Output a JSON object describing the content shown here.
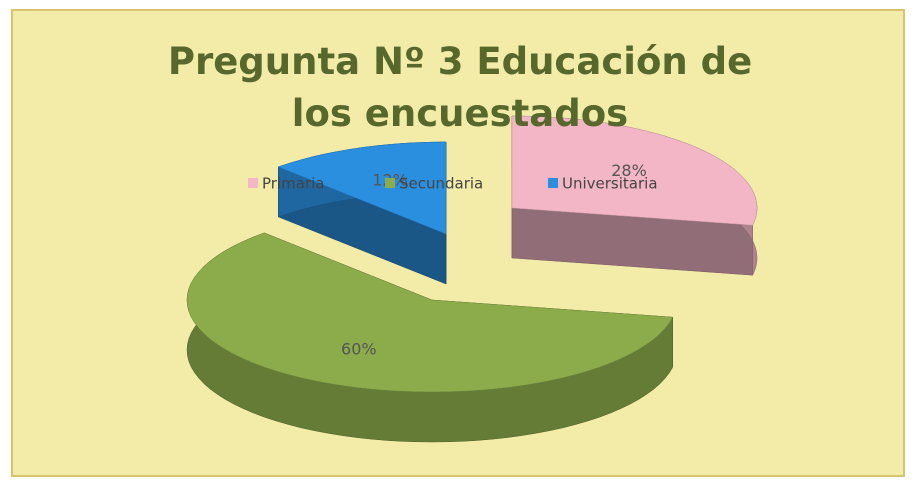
{
  "chart_data": {
    "type": "pie",
    "title": "Pregunta Nº 3 Educación de los encuestados",
    "categories": [
      "Primaria",
      "Secundaria",
      "Universitaria"
    ],
    "values": [
      28,
      60,
      12
    ],
    "value_labels": [
      "28%",
      "60%",
      "12%"
    ],
    "colors": [
      "#f2b6c6",
      "#8cac4c",
      "#2b8fe0"
    ],
    "legend": "top"
  }
}
